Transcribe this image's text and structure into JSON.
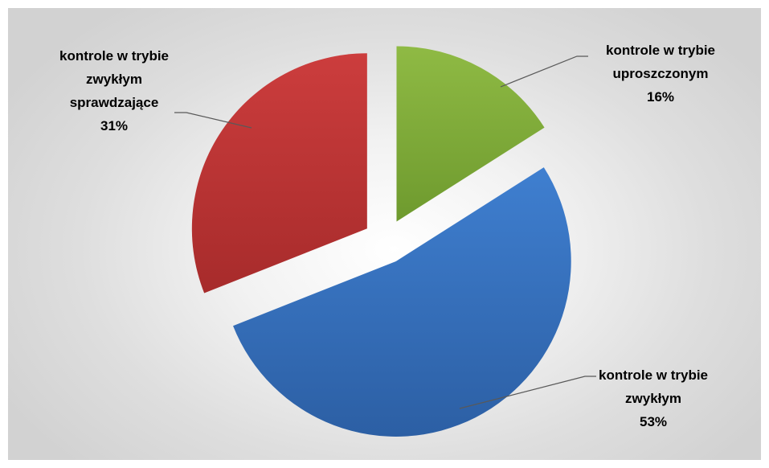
{
  "chart_data": {
    "type": "pie",
    "exploded": true,
    "slices": [
      {
        "label_lines": [
          "kontrole w trybie",
          "uproszczonym"
        ],
        "value": 16,
        "percent_label": "16%",
        "color": "#8fba44",
        "color_dark": "#6e9a2e"
      },
      {
        "label_lines": [
          "kontrole w trybie",
          "zwykłym"
        ],
        "value": 53,
        "percent_label": "53%",
        "color": "#3f7fd0",
        "color_dark": "#2c5fa4"
      },
      {
        "label_lines": [
          "kontrole w trybie",
          "zwykłym",
          "sprawdzające"
        ],
        "value": 31,
        "percent_label": "31%",
        "color": "#cc3d3d",
        "color_dark": "#a72b2b"
      }
    ],
    "legend": "none",
    "data_labels": "outside with leader lines"
  }
}
